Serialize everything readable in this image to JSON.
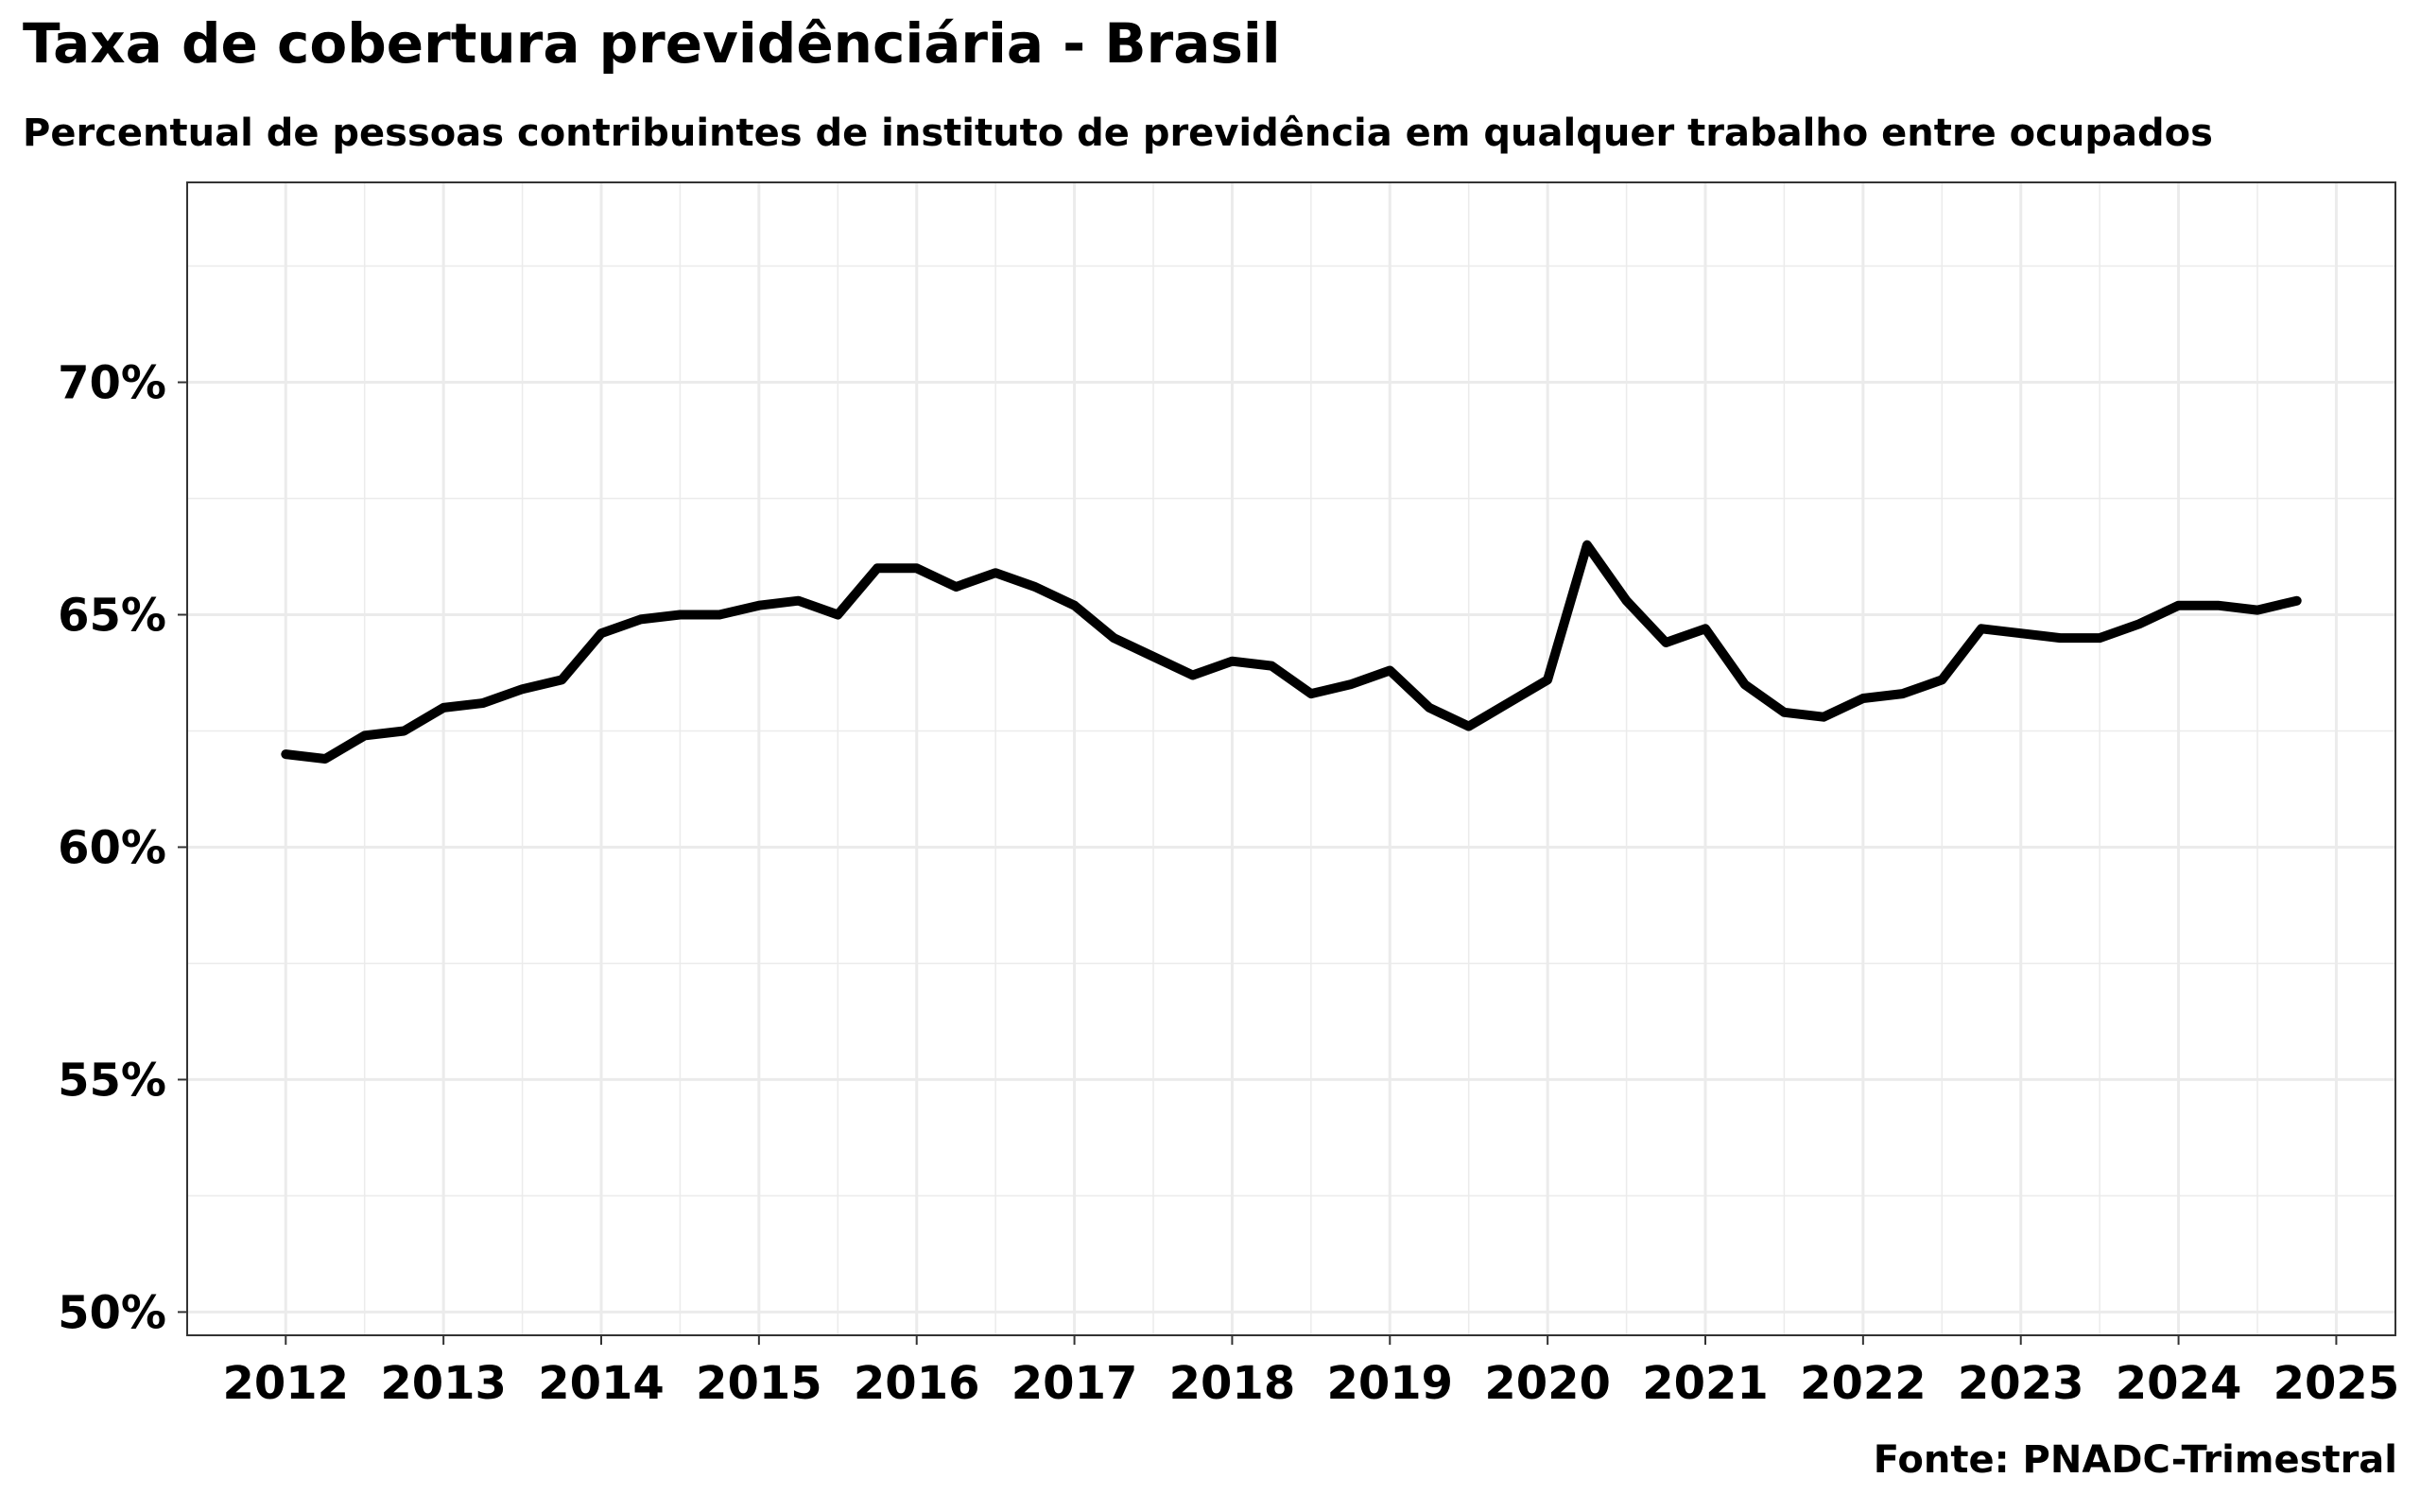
{
  "chart_data": {
    "type": "line",
    "title": "Taxa de cobertura previdênciária - Brasil",
    "subtitle": "Percentual de pessoas contribuintes de instituto de previdência em qualquer trabalho entre ocupados",
    "caption": "Fonte: PNADC-Trimestral",
    "xlabel": "",
    "ylabel": "",
    "x_ticks": [
      "2012",
      "2013",
      "2014",
      "2015",
      "2016",
      "2017",
      "2018",
      "2019",
      "2020",
      "2021",
      "2022",
      "2023",
      "2024",
      "2025"
    ],
    "y_ticks": [
      "50%",
      "55%",
      "60%",
      "65%",
      "70%"
    ],
    "xlim": [
      2011.375,
      2025.375
    ],
    "ylim": [
      49.5,
      74.3
    ],
    "grid": true,
    "line_color": "#000000",
    "grid_color": "#ebebeb",
    "series": [
      {
        "x": [
          "2012T1",
          "2012T2",
          "2012T3",
          "2012T4",
          "2013T1",
          "2013T2",
          "2013T3",
          "2013T4",
          "2014T1",
          "2014T2",
          "2014T3",
          "2014T4",
          "2015T1",
          "2015T2",
          "2015T3",
          "2015T4",
          "2016T1",
          "2016T2",
          "2016T3",
          "2016T4",
          "2017T1",
          "2017T2",
          "2017T3",
          "2017T4",
          "2018T1",
          "2018T2",
          "2018T3",
          "2018T4",
          "2019T1",
          "2019T2",
          "2019T3",
          "2019T4",
          "2020T1",
          "2020T2",
          "2020T3",
          "2020T4",
          "2021T1",
          "2021T2",
          "2021T3",
          "2021T4",
          "2022T1",
          "2022T2",
          "2022T3",
          "2022T4",
          "2023T1",
          "2023T2",
          "2023T3",
          "2023T4",
          "2024T1",
          "2024T2",
          "2024T3",
          "2024T4"
        ],
        "values": [
          62.0,
          61.9,
          62.4,
          62.5,
          63.0,
          63.1,
          63.4,
          63.6,
          64.6,
          64.9,
          65.0,
          65.0,
          65.2,
          65.3,
          65.0,
          66.0,
          66.0,
          65.6,
          65.9,
          65.6,
          65.2,
          64.5,
          64.1,
          63.7,
          64.0,
          63.9,
          63.3,
          63.5,
          63.8,
          63.0,
          62.6,
          63.1,
          63.6,
          66.5,
          65.3,
          64.4,
          64.7,
          63.5,
          62.9,
          62.8,
          63.2,
          63.3,
          63.6,
          64.7,
          64.6,
          64.5,
          64.5,
          64.8,
          65.2,
          65.2,
          65.1,
          65.3
        ]
      }
    ]
  }
}
